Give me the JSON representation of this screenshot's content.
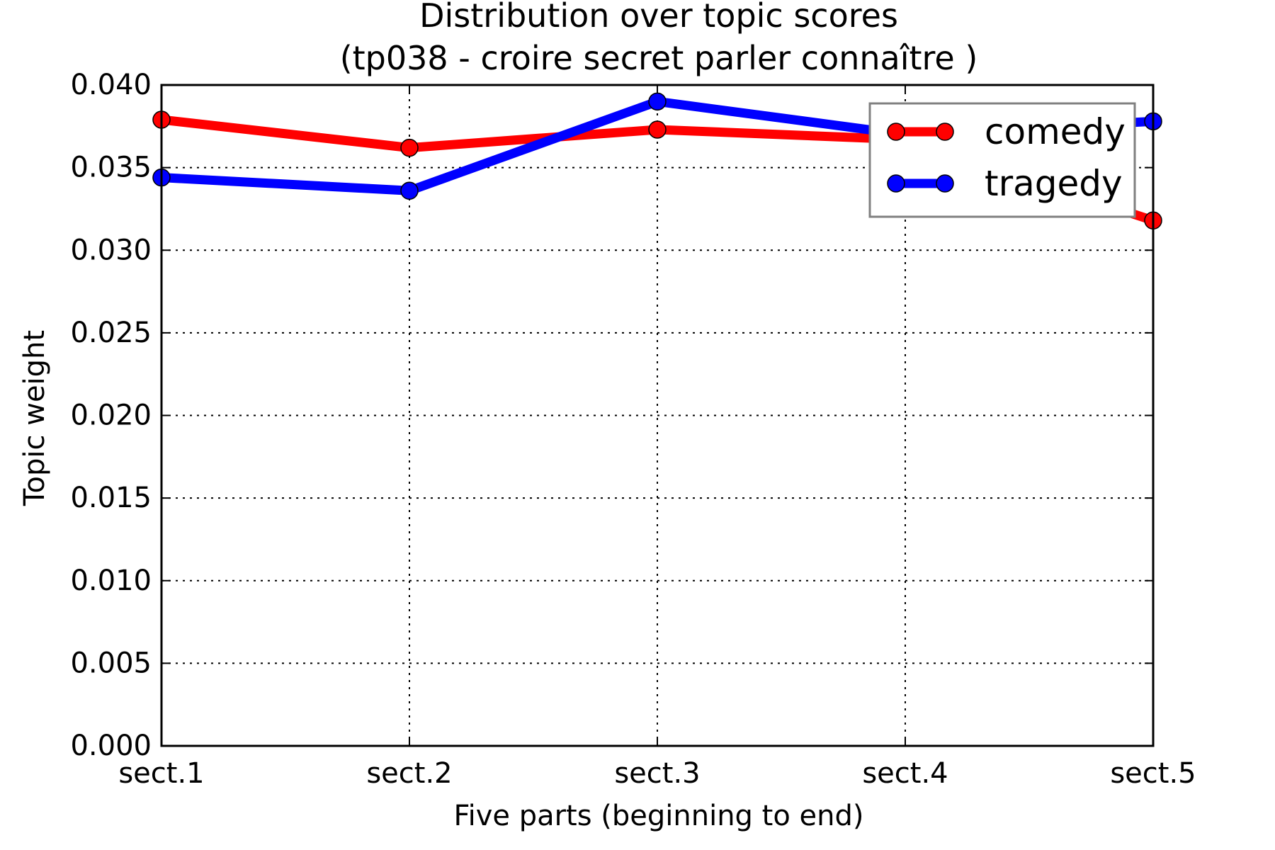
{
  "chart_data": {
    "type": "line",
    "title": [
      "Distribution over topic scores",
      "(tp038 - croire secret parler connaître )"
    ],
    "xlabel": "Five parts (beginning to end)",
    "ylabel": "Topic weight",
    "categories": [
      "sect.1",
      "sect.2",
      "sect.3",
      "sect.4",
      "sect.5"
    ],
    "ylim": [
      0.0,
      0.04
    ],
    "yticks": [
      "0.000",
      "0.005",
      "0.010",
      "0.015",
      "0.020",
      "0.025",
      "0.030",
      "0.035",
      "0.040"
    ],
    "grid": true,
    "legend_position": "top-right",
    "series": [
      {
        "name": "comedy",
        "color": "#ff0000",
        "values": [
          0.0379,
          0.0362,
          0.0373,
          0.0367,
          0.0318
        ]
      },
      {
        "name": "tragedy",
        "color": "#0000ff",
        "values": [
          0.0344,
          0.0336,
          0.039,
          0.037,
          0.0378
        ]
      }
    ]
  }
}
